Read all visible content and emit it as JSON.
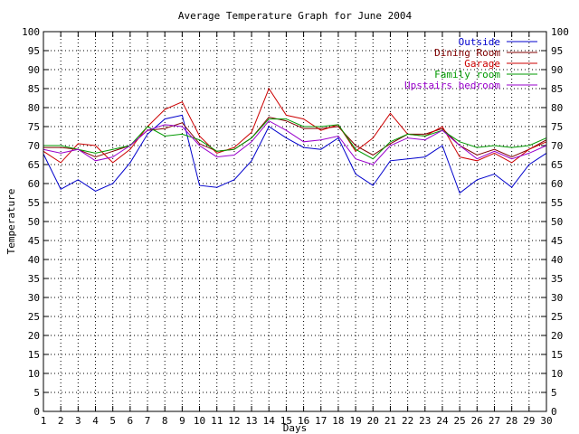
{
  "chart_data": {
    "type": "line",
    "title": "Average Temperature Graph for June 2004",
    "xlabel": "Days",
    "ylabel": "Temperature",
    "x": [
      1,
      2,
      3,
      4,
      5,
      6,
      7,
      8,
      9,
      10,
      11,
      12,
      13,
      14,
      15,
      16,
      17,
      18,
      19,
      20,
      21,
      22,
      23,
      24,
      25,
      26,
      27,
      28,
      29,
      30
    ],
    "xlim": [
      1,
      30
    ],
    "ylim": [
      0,
      100
    ],
    "yticks": [
      0,
      5,
      10,
      15,
      20,
      25,
      30,
      35,
      40,
      45,
      50,
      55,
      60,
      65,
      70,
      75,
      80,
      85,
      90,
      95,
      100
    ],
    "grid": true,
    "legend_position": "top-right",
    "series": [
      {
        "name": "Outside",
        "color": "#0000cc",
        "values": [
          67.8,
          58.5,
          61,
          58,
          60,
          65.5,
          73,
          77,
          78,
          59.5,
          59,
          61,
          66,
          75,
          72,
          69.5,
          69,
          72,
          62.5,
          59.5,
          66,
          66.5,
          67,
          70,
          57.5,
          61,
          62.5,
          59,
          65,
          68
        ]
      },
      {
        "name": "Dining Room",
        "color": "#800000",
        "values": [
          69.5,
          69.5,
          69,
          67,
          68.5,
          70,
          74,
          74.5,
          76,
          70.5,
          68.5,
          69,
          72,
          77.5,
          76.5,
          74.5,
          74.5,
          75,
          70,
          67.5,
          70.5,
          73,
          73,
          74.5,
          70,
          67.5,
          69,
          67,
          69,
          71.5
        ]
      },
      {
        "name": "Garage",
        "color": "#cc0000",
        "values": [
          68.5,
          65.5,
          70.5,
          70,
          65.5,
          69,
          75,
          79.5,
          81.5,
          72.5,
          68,
          69.5,
          73.5,
          85,
          78,
          77,
          74,
          75.5,
          68.5,
          72,
          78.5,
          73,
          72.5,
          75,
          67,
          66,
          68,
          65.5,
          69,
          71
        ]
      },
      {
        "name": "Family room",
        "color": "#009900",
        "values": [
          70,
          70,
          69,
          68,
          69,
          70,
          75,
          72.5,
          73,
          71.5,
          68.5,
          69,
          72,
          77,
          77,
          75,
          75,
          75.5,
          69,
          66.5,
          71,
          73,
          72.5,
          74,
          71,
          69.5,
          70,
          69.5,
          70,
          72
        ]
      },
      {
        "name": "Upstairs bedroom",
        "color": "#9900cc",
        "values": [
          69,
          68,
          69,
          66,
          67,
          70,
          74,
          75.5,
          75,
          70,
          67,
          67.5,
          71,
          76.5,
          74,
          71,
          71.5,
          72.5,
          66.5,
          65,
          70,
          72,
          71.5,
          74,
          70,
          66.5,
          68.5,
          66.5,
          68,
          70
        ]
      }
    ]
  }
}
